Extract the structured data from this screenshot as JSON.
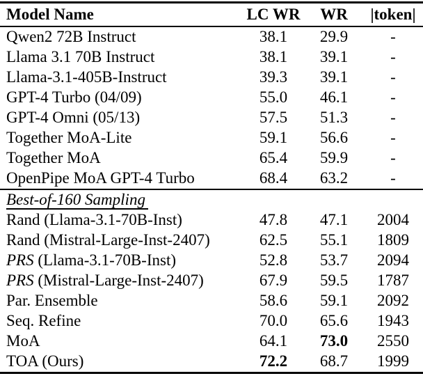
{
  "meta": {
    "background_color": "#ffffff",
    "text_color": "#000000",
    "rule_color": "#000000"
  },
  "table": {
    "columns": [
      {
        "label": "Model Name"
      },
      {
        "label": "LC WR"
      },
      {
        "label": "WR"
      },
      {
        "label": "|token|"
      }
    ],
    "sections": [
      {
        "label": "",
        "rows": [
          {
            "model": "Qwen2 72B Instruct",
            "lc_wr": "38.1",
            "wr": "29.9",
            "tokens": "-"
          },
          {
            "model": "Llama 3.1 70B Instruct",
            "lc_wr": "38.1",
            "wr": "39.1",
            "tokens": "-"
          },
          {
            "model": "Llama-3.1-405B-Instruct",
            "lc_wr": "39.3",
            "wr": "39.1",
            "tokens": "-"
          },
          {
            "model": "GPT-4 Turbo (04/09)",
            "lc_wr": "55.0",
            "wr": "46.1",
            "tokens": "-"
          },
          {
            "model": "GPT-4 Omni (05/13)",
            "lc_wr": "57.5",
            "wr": "51.3",
            "tokens": "-"
          },
          {
            "model": "Together MoA-Lite",
            "lc_wr": "59.1",
            "wr": "56.6",
            "tokens": "-"
          },
          {
            "model": "Together MoA",
            "lc_wr": "65.4",
            "wr": "59.9",
            "tokens": "-"
          },
          {
            "model": "OpenPipe MoA GPT-4 Turbo",
            "lc_wr": "68.4",
            "wr": "63.2",
            "tokens": "-"
          }
        ]
      },
      {
        "label": "Best-of-160 Sampling",
        "rows": [
          {
            "model": "Rand (Llama-3.1-70B-Inst)",
            "lc_wr": "47.8",
            "wr": "47.1",
            "tokens": "2004"
          },
          {
            "model": "Rand (Mistral-Large-Inst-2407)",
            "lc_wr": "62.5",
            "wr": "55.1",
            "tokens": "1809"
          },
          {
            "model": "PRS (Llama-3.1-70B-Inst)",
            "italic_prefix": "PRS",
            "lc_wr": "52.8",
            "wr": "53.7",
            "tokens": "2094"
          },
          {
            "model": "PRS (Mistral-Large-Inst-2407)",
            "italic_prefix": "PRS",
            "lc_wr": "67.9",
            "wr": "59.5",
            "tokens": "1787"
          },
          {
            "model": "Par. Ensemble",
            "lc_wr": "58.6",
            "wr": "59.1",
            "tokens": "2092"
          },
          {
            "model": "Seq. Refine",
            "lc_wr": "70.0",
            "wr": "65.6",
            "tokens": "1943"
          },
          {
            "model": "MoA",
            "lc_wr": "64.1",
            "wr": "73.0",
            "tokens": "2550",
            "bold": "wr"
          },
          {
            "model": "TOA (Ours)",
            "lc_wr": "72.2",
            "wr": "68.7",
            "tokens": "1999",
            "bold": "lc_wr"
          }
        ]
      }
    ]
  }
}
